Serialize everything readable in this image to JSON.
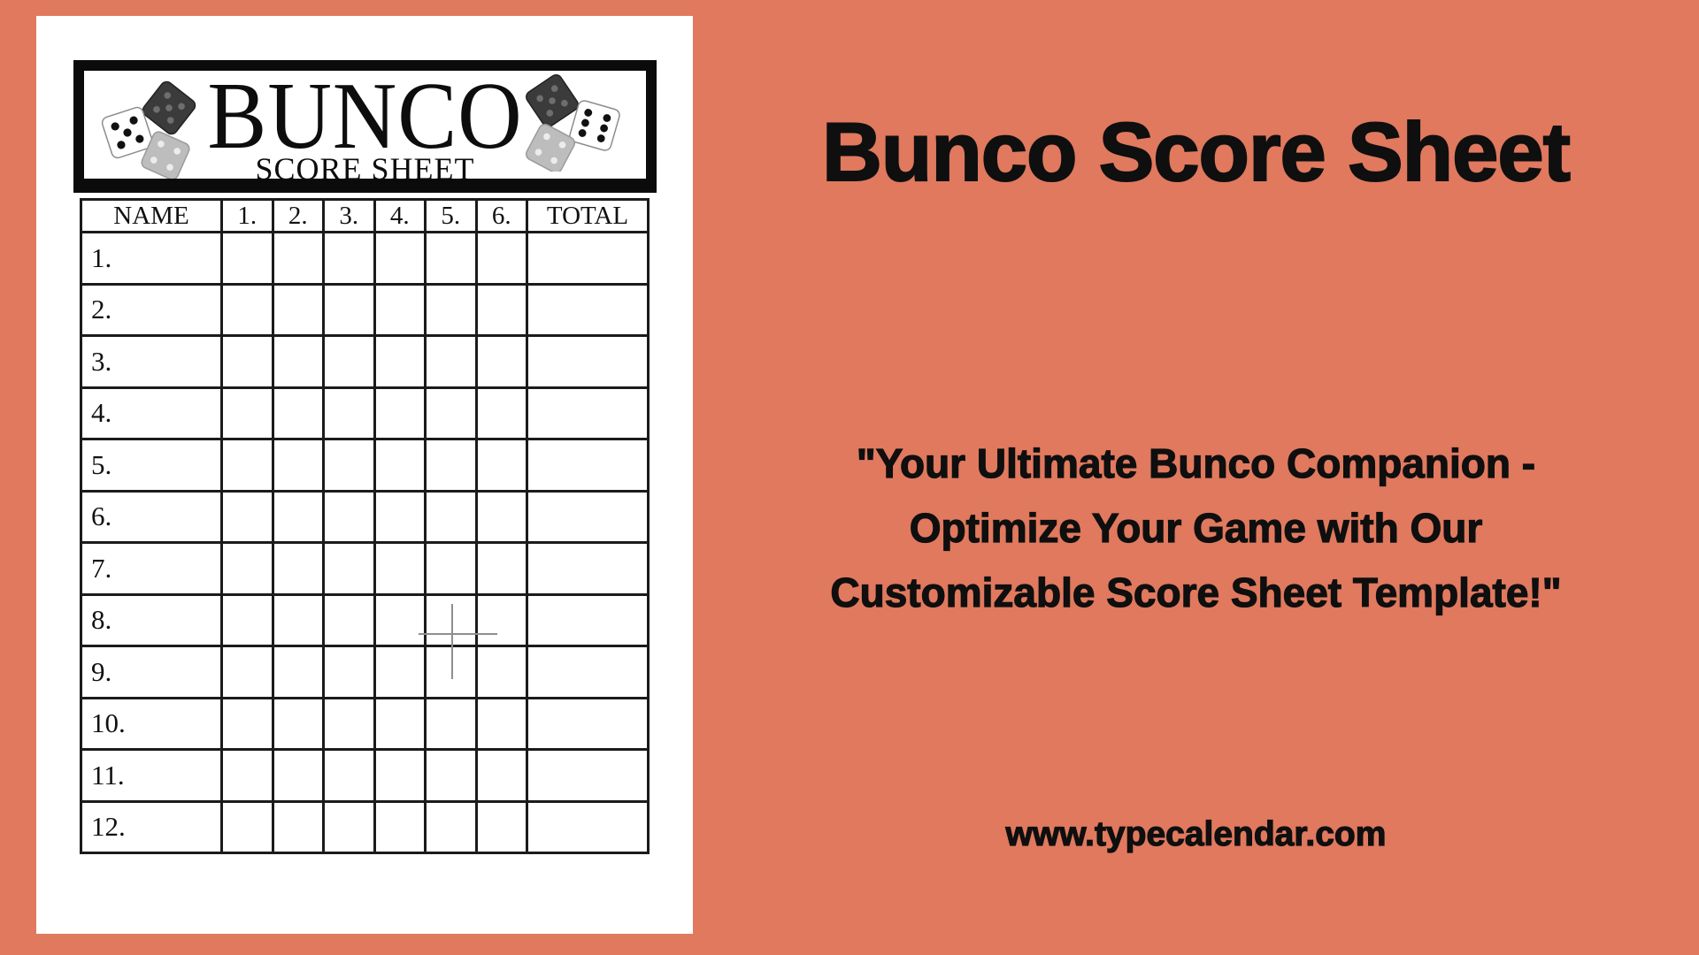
{
  "colors": {
    "background": "#E0795E",
    "paper": "#FFFFFF",
    "ink": "#0F0F0F",
    "grid_line": "#1B1B1B",
    "crosshair_gray": "#8F8F8F"
  },
  "score_sheet": {
    "title": "BUNCO",
    "subtitle": "SCORE SHEET",
    "table": {
      "columns": [
        "NAME",
        "1.",
        "2.",
        "3.",
        "4.",
        "5.",
        "6.",
        "TOTAL"
      ],
      "row_labels": [
        "1.",
        "2.",
        "3.",
        "4.",
        "5.",
        "6.",
        "7.",
        "8.",
        "9.",
        "10.",
        "11.",
        "12."
      ]
    }
  },
  "promo": {
    "title": "Bunco Score Sheet",
    "quote_lines": [
      "\"Your Ultimate Bunco Companion -",
      "Optimize Your Game with Our",
      "Customizable Score Sheet Template!\""
    ],
    "website": "www.typecalendar.com"
  },
  "icons": {
    "left_dice": "three-dice-cluster",
    "right_dice": "three-dice-cluster"
  }
}
